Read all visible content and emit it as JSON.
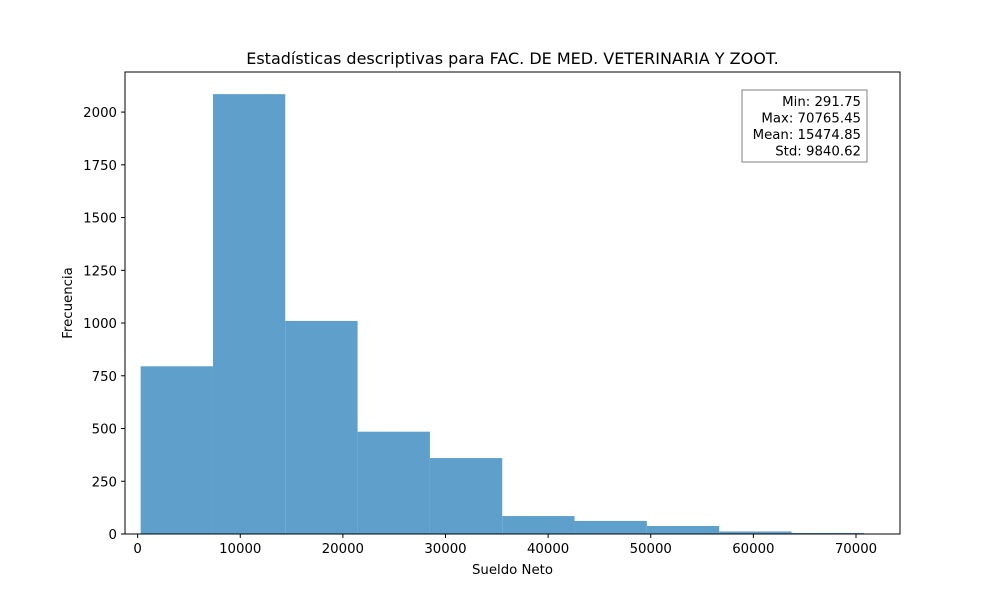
{
  "chart_data": {
    "type": "bar",
    "title": "Estadísticas descriptivas para FAC. DE MED. VETERINARIA Y ZOOT.",
    "xlabel": "Sueldo Neto",
    "ylabel": "Frecuencia",
    "xlim": [
      -1232,
      74289
    ],
    "ylim": [
      0,
      2190
    ],
    "xticks": [
      0,
      10000,
      20000,
      30000,
      40000,
      50000,
      60000,
      70000
    ],
    "yticks": [
      0,
      250,
      500,
      750,
      1000,
      1250,
      1500,
      1750,
      2000
    ],
    "grid": false,
    "bar_color": "#5f9fcc",
    "bins": [
      {
        "x0": 291.75,
        "x1": 7339.12,
        "value": 795
      },
      {
        "x0": 7339.12,
        "x1": 14386.49,
        "value": 2085
      },
      {
        "x0": 14386.49,
        "x1": 21433.86,
        "value": 1010
      },
      {
        "x0": 21433.86,
        "x1": 28481.23,
        "value": 485
      },
      {
        "x0": 28481.23,
        "x1": 35528.6,
        "value": 360
      },
      {
        "x0": 35528.6,
        "x1": 42575.97,
        "value": 85
      },
      {
        "x0": 42575.97,
        "x1": 49623.34,
        "value": 62
      },
      {
        "x0": 49623.34,
        "x1": 56670.71,
        "value": 38
      },
      {
        "x0": 56670.71,
        "x1": 63718.08,
        "value": 12
      },
      {
        "x0": 63718.08,
        "x1": 70765.45,
        "value": 5
      }
    ],
    "stats_box": {
      "lines": [
        "Min: 291.75",
        "Max: 70765.45",
        "Mean: 15474.85",
        "Std: 9840.62"
      ],
      "placement": "top-right"
    }
  }
}
